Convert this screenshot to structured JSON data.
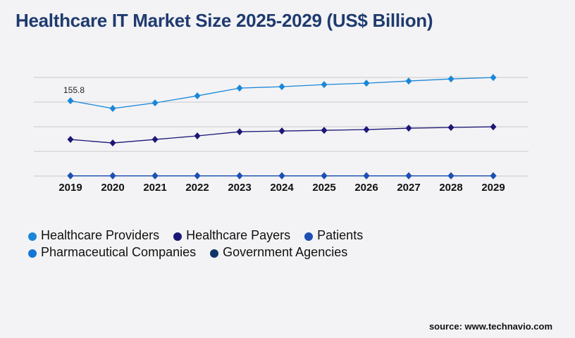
{
  "title": "Healthcare IT Market Size 2025-2029 (US$ Billion)",
  "source": "source: www.technavio.com",
  "chart_data": {
    "type": "line",
    "title": "Healthcare IT Market Size 2025-2029 (US$ Billion)",
    "xlabel": "",
    "ylabel": "",
    "categories": [
      "2019",
      "2020",
      "2021",
      "2022",
      "2023",
      "2024",
      "2025",
      "2026",
      "2027",
      "2028",
      "2029"
    ],
    "ylim": [
      0,
      204
    ],
    "grid": true,
    "legend_placement": "bottom",
    "annotations": [
      {
        "series": "Healthcare Providers",
        "category": "2019",
        "text": "155.8"
      }
    ],
    "series": [
      {
        "name": "Healthcare Providers",
        "color": "#1a87d9",
        "values": [
          155.8,
          139.8,
          151.4,
          166.0,
          182.0,
          184.9,
          189.3,
          192.2,
          196.6,
          200.9,
          203.8
        ]
      },
      {
        "name": "Healthcare Payers",
        "color": "#1c1777",
        "values": [
          75.7,
          68.4,
          75.7,
          83.0,
          91.7,
          93.2,
          94.6,
          96.1,
          99.0,
          100.5,
          101.9
        ]
      },
      {
        "name": "Patients",
        "color": "#1e4fb5",
        "values": [
          0.5,
          0.5,
          0.5,
          0.5,
          0.5,
          0.5,
          0.5,
          0.5,
          0.5,
          0.5,
          0.5
        ]
      },
      {
        "name": "Pharmaceutical Companies",
        "color": "#1477d6",
        "values": [
          0.5,
          0.5,
          0.5,
          0.5,
          0.5,
          0.5,
          0.5,
          0.5,
          0.5,
          0.5,
          0.5
        ]
      },
      {
        "name": "Government Agencies",
        "color": "#0f3566",
        "values": [
          0.5,
          0.5,
          0.5,
          0.5,
          0.5,
          0.5,
          0.5,
          0.5,
          0.5,
          0.5,
          0.5
        ]
      }
    ]
  }
}
